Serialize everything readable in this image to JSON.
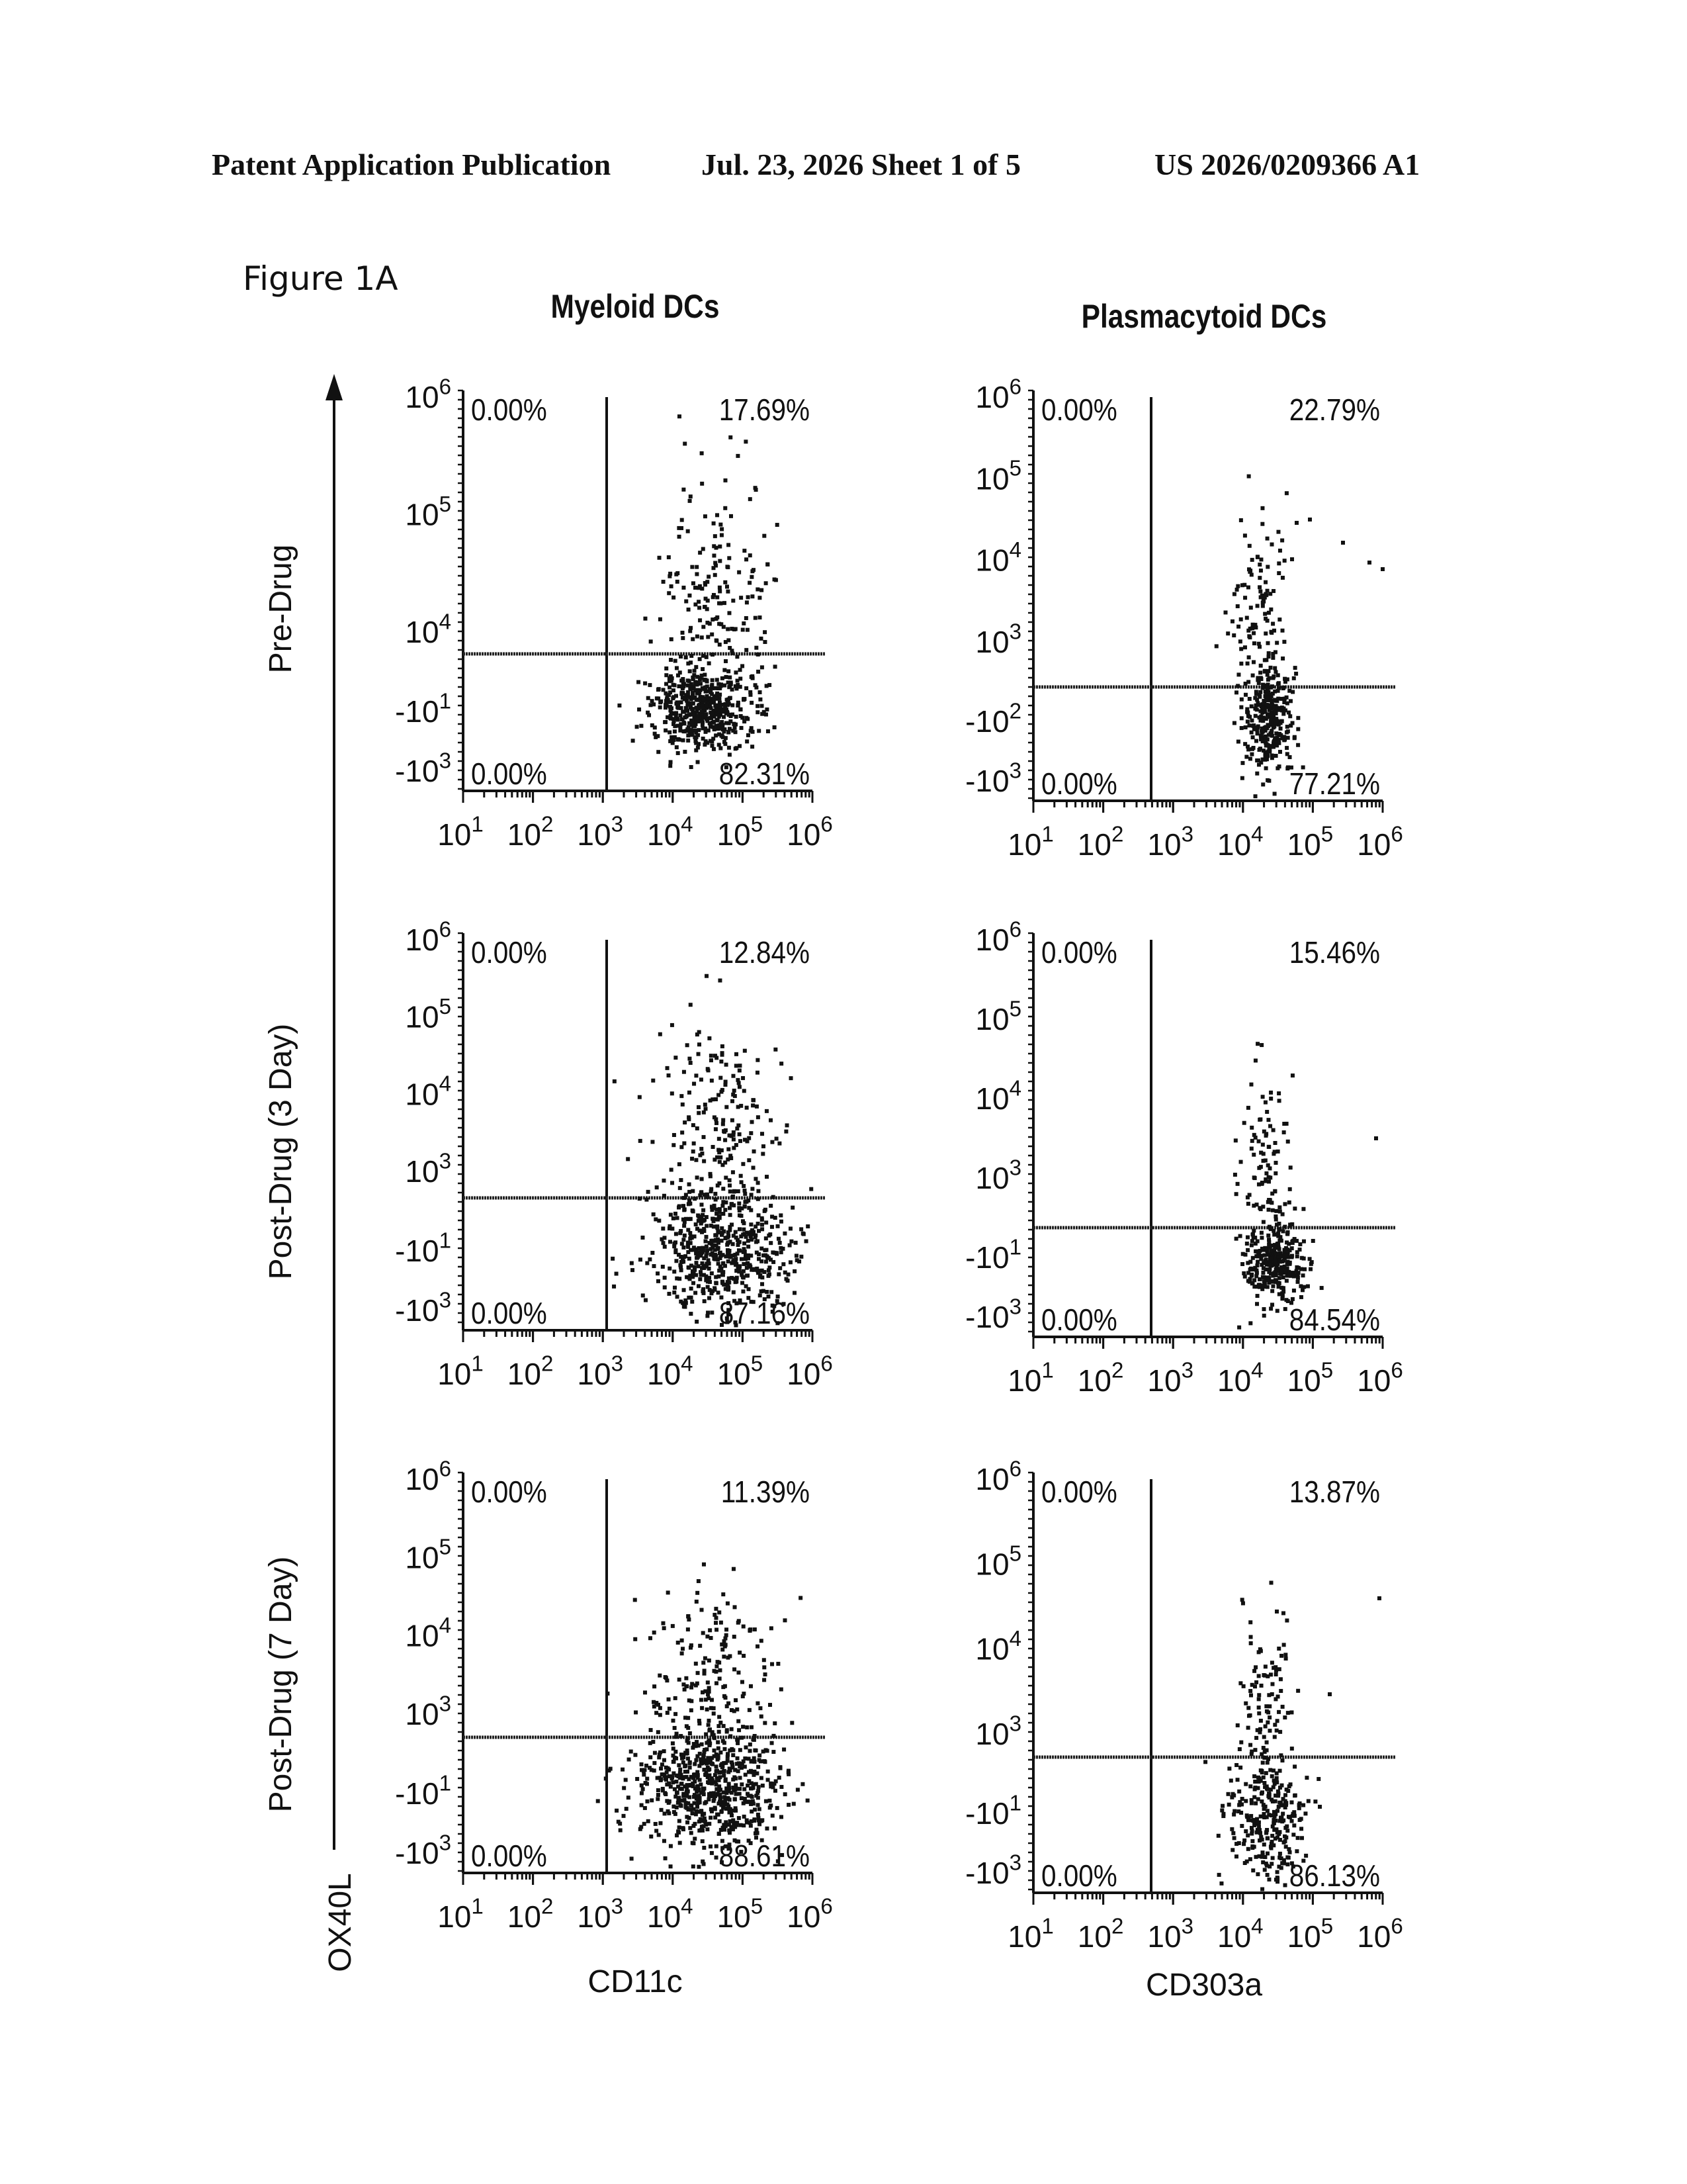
{
  "header": {
    "left": "Patent Application Publication",
    "middle": "Jul. 23, 2026   Sheet 1 of 5",
    "right": "US 2026/0209366 A1"
  },
  "figure_label": "Figure 1A",
  "columns": [
    "Myeloid DCs",
    "Plasmacytoid DCs"
  ],
  "rows": [
    "Pre-Drug",
    "Post-Drug (3 Day)",
    "Post-Drug (7 Day)"
  ],
  "y_axis_label": "OX40L",
  "x_axis_labels": [
    "CD11c",
    "CD303a"
  ],
  "chart_data": [
    {
      "type": "scatter",
      "column": "Myeloid DCs",
      "row": "Pre-Drug",
      "xlabel": "CD11c",
      "ylabel": "OX40L",
      "x_tick_labels": [
        "10^1",
        "10^2",
        "10^3",
        "10^4",
        "10^5",
        "10^6"
      ],
      "y_tick_labels": [
        "-10^3",
        "-10^1",
        "10^4",
        "10^5",
        "10^6"
      ],
      "quadrants": {
        "upper_left": "0.00%",
        "upper_right": "17.69%",
        "lower_left": "0.00%",
        "lower_right": "82.31%"
      }
    },
    {
      "type": "scatter",
      "column": "Plasmacytoid DCs",
      "row": "Pre-Drug",
      "xlabel": "CD303a",
      "ylabel": "OX40L",
      "x_tick_labels": [
        "10^1",
        "10^2",
        "10^3",
        "10^4",
        "10^5",
        "10^6"
      ],
      "y_tick_labels": [
        "-10^3",
        "-10^2",
        "10^3",
        "10^4",
        "10^5",
        "10^6"
      ],
      "quadrants": {
        "upper_left": "0.00%",
        "upper_right": "22.79%",
        "lower_left": "0.00%",
        "lower_right": "77.21%"
      }
    },
    {
      "type": "scatter",
      "column": "Myeloid DCs",
      "row": "Post-Drug (3 Day)",
      "xlabel": "CD11c",
      "ylabel": "OX40L",
      "x_tick_labels": [
        "10^1",
        "10^2",
        "10^3",
        "10^4",
        "10^5",
        "10^6"
      ],
      "y_tick_labels": [
        "-10^3",
        "-10^1",
        "10^3",
        "10^4",
        "10^5",
        "10^6"
      ],
      "quadrants": {
        "upper_left": "0.00%",
        "upper_right": "12.84%",
        "lower_left": "0.00%",
        "lower_right": "87.16%"
      }
    },
    {
      "type": "scatter",
      "column": "Plasmacytoid DCs",
      "row": "Post-Drug (3 Day)",
      "xlabel": "CD303a",
      "ylabel": "OX40L",
      "x_tick_labels": [
        "10^1",
        "10^2",
        "10^3",
        "10^4",
        "10^5",
        "10^6"
      ],
      "y_tick_labels": [
        "-10^3",
        "-10^1",
        "10^3",
        "10^4",
        "10^5",
        "10^6"
      ],
      "quadrants": {
        "upper_left": "0.00%",
        "upper_right": "15.46%",
        "lower_left": "0.00%",
        "lower_right": "84.54%"
      }
    },
    {
      "type": "scatter",
      "column": "Myeloid DCs",
      "row": "Post-Drug (7 Day)",
      "xlabel": "CD11c",
      "ylabel": "OX40L",
      "x_tick_labels": [
        "10^1",
        "10^2",
        "10^3",
        "10^4",
        "10^5",
        "10^6"
      ],
      "y_tick_labels": [
        "-10^3",
        "-10^1",
        "10^3",
        "10^4",
        "10^5",
        "10^6"
      ],
      "quadrants": {
        "upper_left": "0.00%",
        "upper_right": "11.39%",
        "lower_left": "0.00%",
        "lower_right": "88.61%"
      }
    },
    {
      "type": "scatter",
      "column": "Plasmacytoid DCs",
      "row": "Post-Drug (7 Day)",
      "xlabel": "CD303a",
      "ylabel": "OX40L",
      "x_tick_labels": [
        "10^1",
        "10^2",
        "10^3",
        "10^4",
        "10^5",
        "10^6"
      ],
      "y_tick_labels": [
        "-10^3",
        "-10^1",
        "10^3",
        "10^4",
        "10^5",
        "10^6"
      ],
      "quadrants": {
        "upper_left": "0.00%",
        "upper_right": "13.87%",
        "lower_left": "0.00%",
        "lower_right": "86.13%"
      }
    }
  ]
}
